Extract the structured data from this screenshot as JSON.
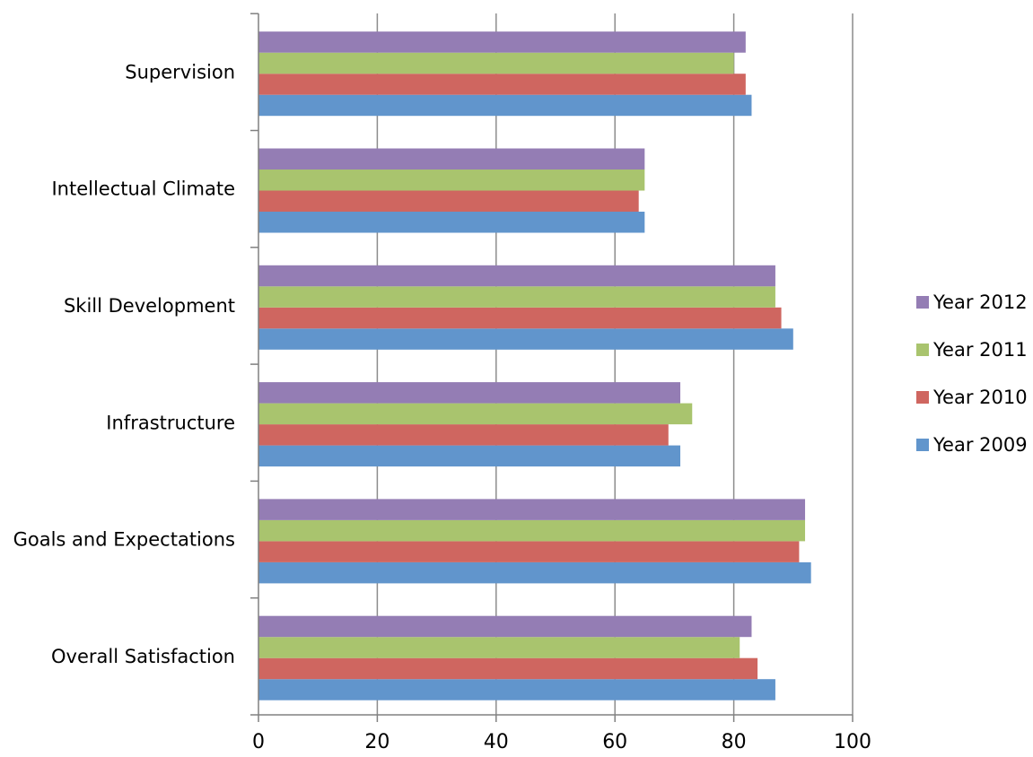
{
  "chart_data": {
    "type": "bar",
    "orientation": "horizontal",
    "categories": [
      "Overall Satisfaction",
      "Goals and Expectations",
      "Infrastructure",
      "Skill Development",
      "Intellectual Climate",
      "Supervision"
    ],
    "series": [
      {
        "name": "Year 2009",
        "color": "#6195CC",
        "values": [
          87,
          93,
          71,
          90,
          65,
          83
        ]
      },
      {
        "name": "Year 2010",
        "color": "#CF6660",
        "values": [
          84,
          91,
          69,
          88,
          64,
          82
        ]
      },
      {
        "name": "Year 2011",
        "color": "#A9C46E",
        "values": [
          81,
          92,
          73,
          87,
          65,
          80
        ]
      },
      {
        "name": "Year 2012",
        "color": "#947DB4",
        "values": [
          83,
          92,
          71,
          87,
          65,
          82
        ]
      }
    ],
    "xlim": [
      0,
      100
    ],
    "xticks": [
      "0",
      "20",
      "40",
      "60",
      "80",
      "100"
    ],
    "grid": "vertical",
    "legend_position": "right",
    "legend_order": [
      "Year 2012",
      "Year 2011",
      "Year 2010",
      "Year 2009"
    ],
    "gridline_color": "#8C8C8C",
    "axis_color": "#808080"
  }
}
